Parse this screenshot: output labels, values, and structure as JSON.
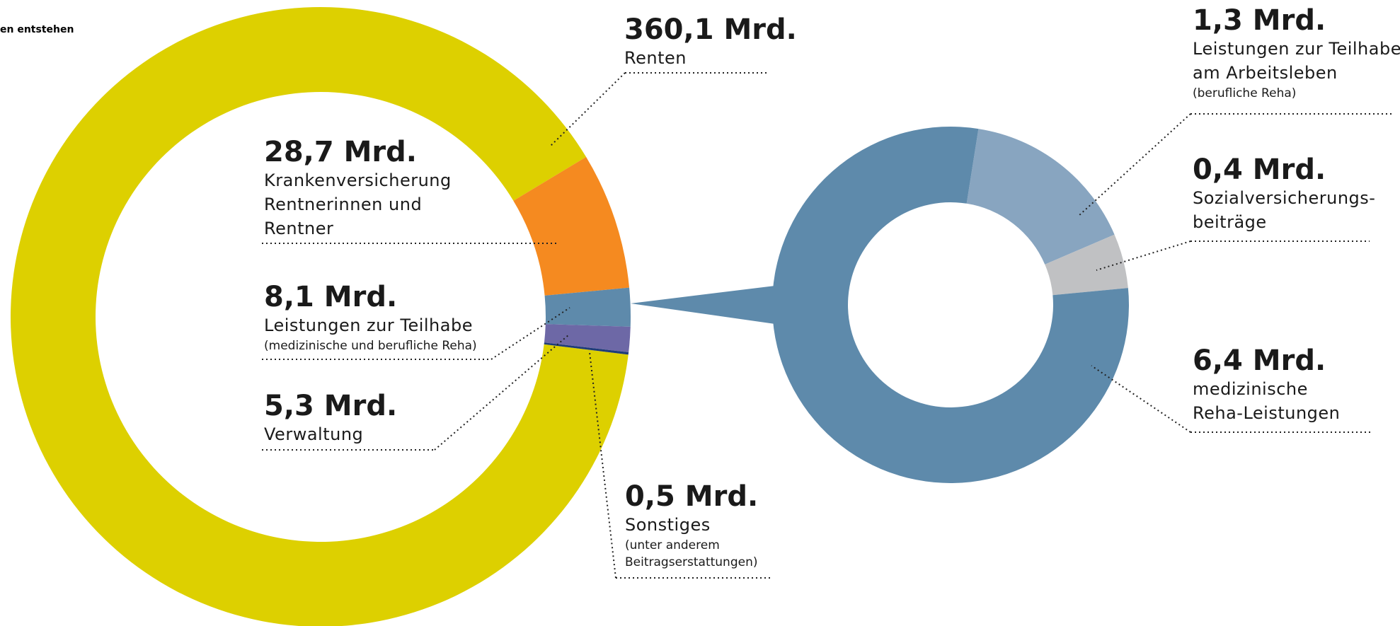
{
  "chart_data": [
    {
      "type": "donut",
      "title": "en entstehen",
      "categories": [
        "Renten",
        "Krankenversicherung Rentnerinnen und Rentner",
        "Leistungen zur Teilhabe",
        "Verwaltung",
        "Sonstiges"
      ],
      "category_notes": [
        null,
        null,
        "(medizinische und berufliche Reha)",
        null,
        "(unter anderem\nBeitragserstattungen)"
      ],
      "values": [
        360.1,
        28.7,
        8.1,
        5.3,
        0.5
      ],
      "value_labels": [
        "360,1 Mrd.",
        "28,7 Mrd.",
        "8,1 Mrd.",
        "5,3 Mrd.",
        "0,5 Mrd."
      ],
      "colors": [
        "#ddd000",
        "#f58a20",
        "#5e8aab",
        "#6d68a6",
        "#1f3c77"
      ]
    },
    {
      "type": "donut",
      "categories": [
        "Leistungen zur Teilhabe\nam Arbeitsleben",
        "Sozialversicherungs-\nbeiträge",
        "medizinische\nReha-Leistungen"
      ],
      "category_notes": [
        "(berufliche Reha)",
        null,
        null
      ],
      "values": [
        1.3,
        0.4,
        6.4
      ],
      "value_labels": [
        "1,3 Mrd.",
        "0,4 Mrd.",
        "6,4 Mrd."
      ],
      "colors": [
        "#88a5c0",
        "#c0c1c3",
        "#5e8aab"
      ]
    }
  ]
}
